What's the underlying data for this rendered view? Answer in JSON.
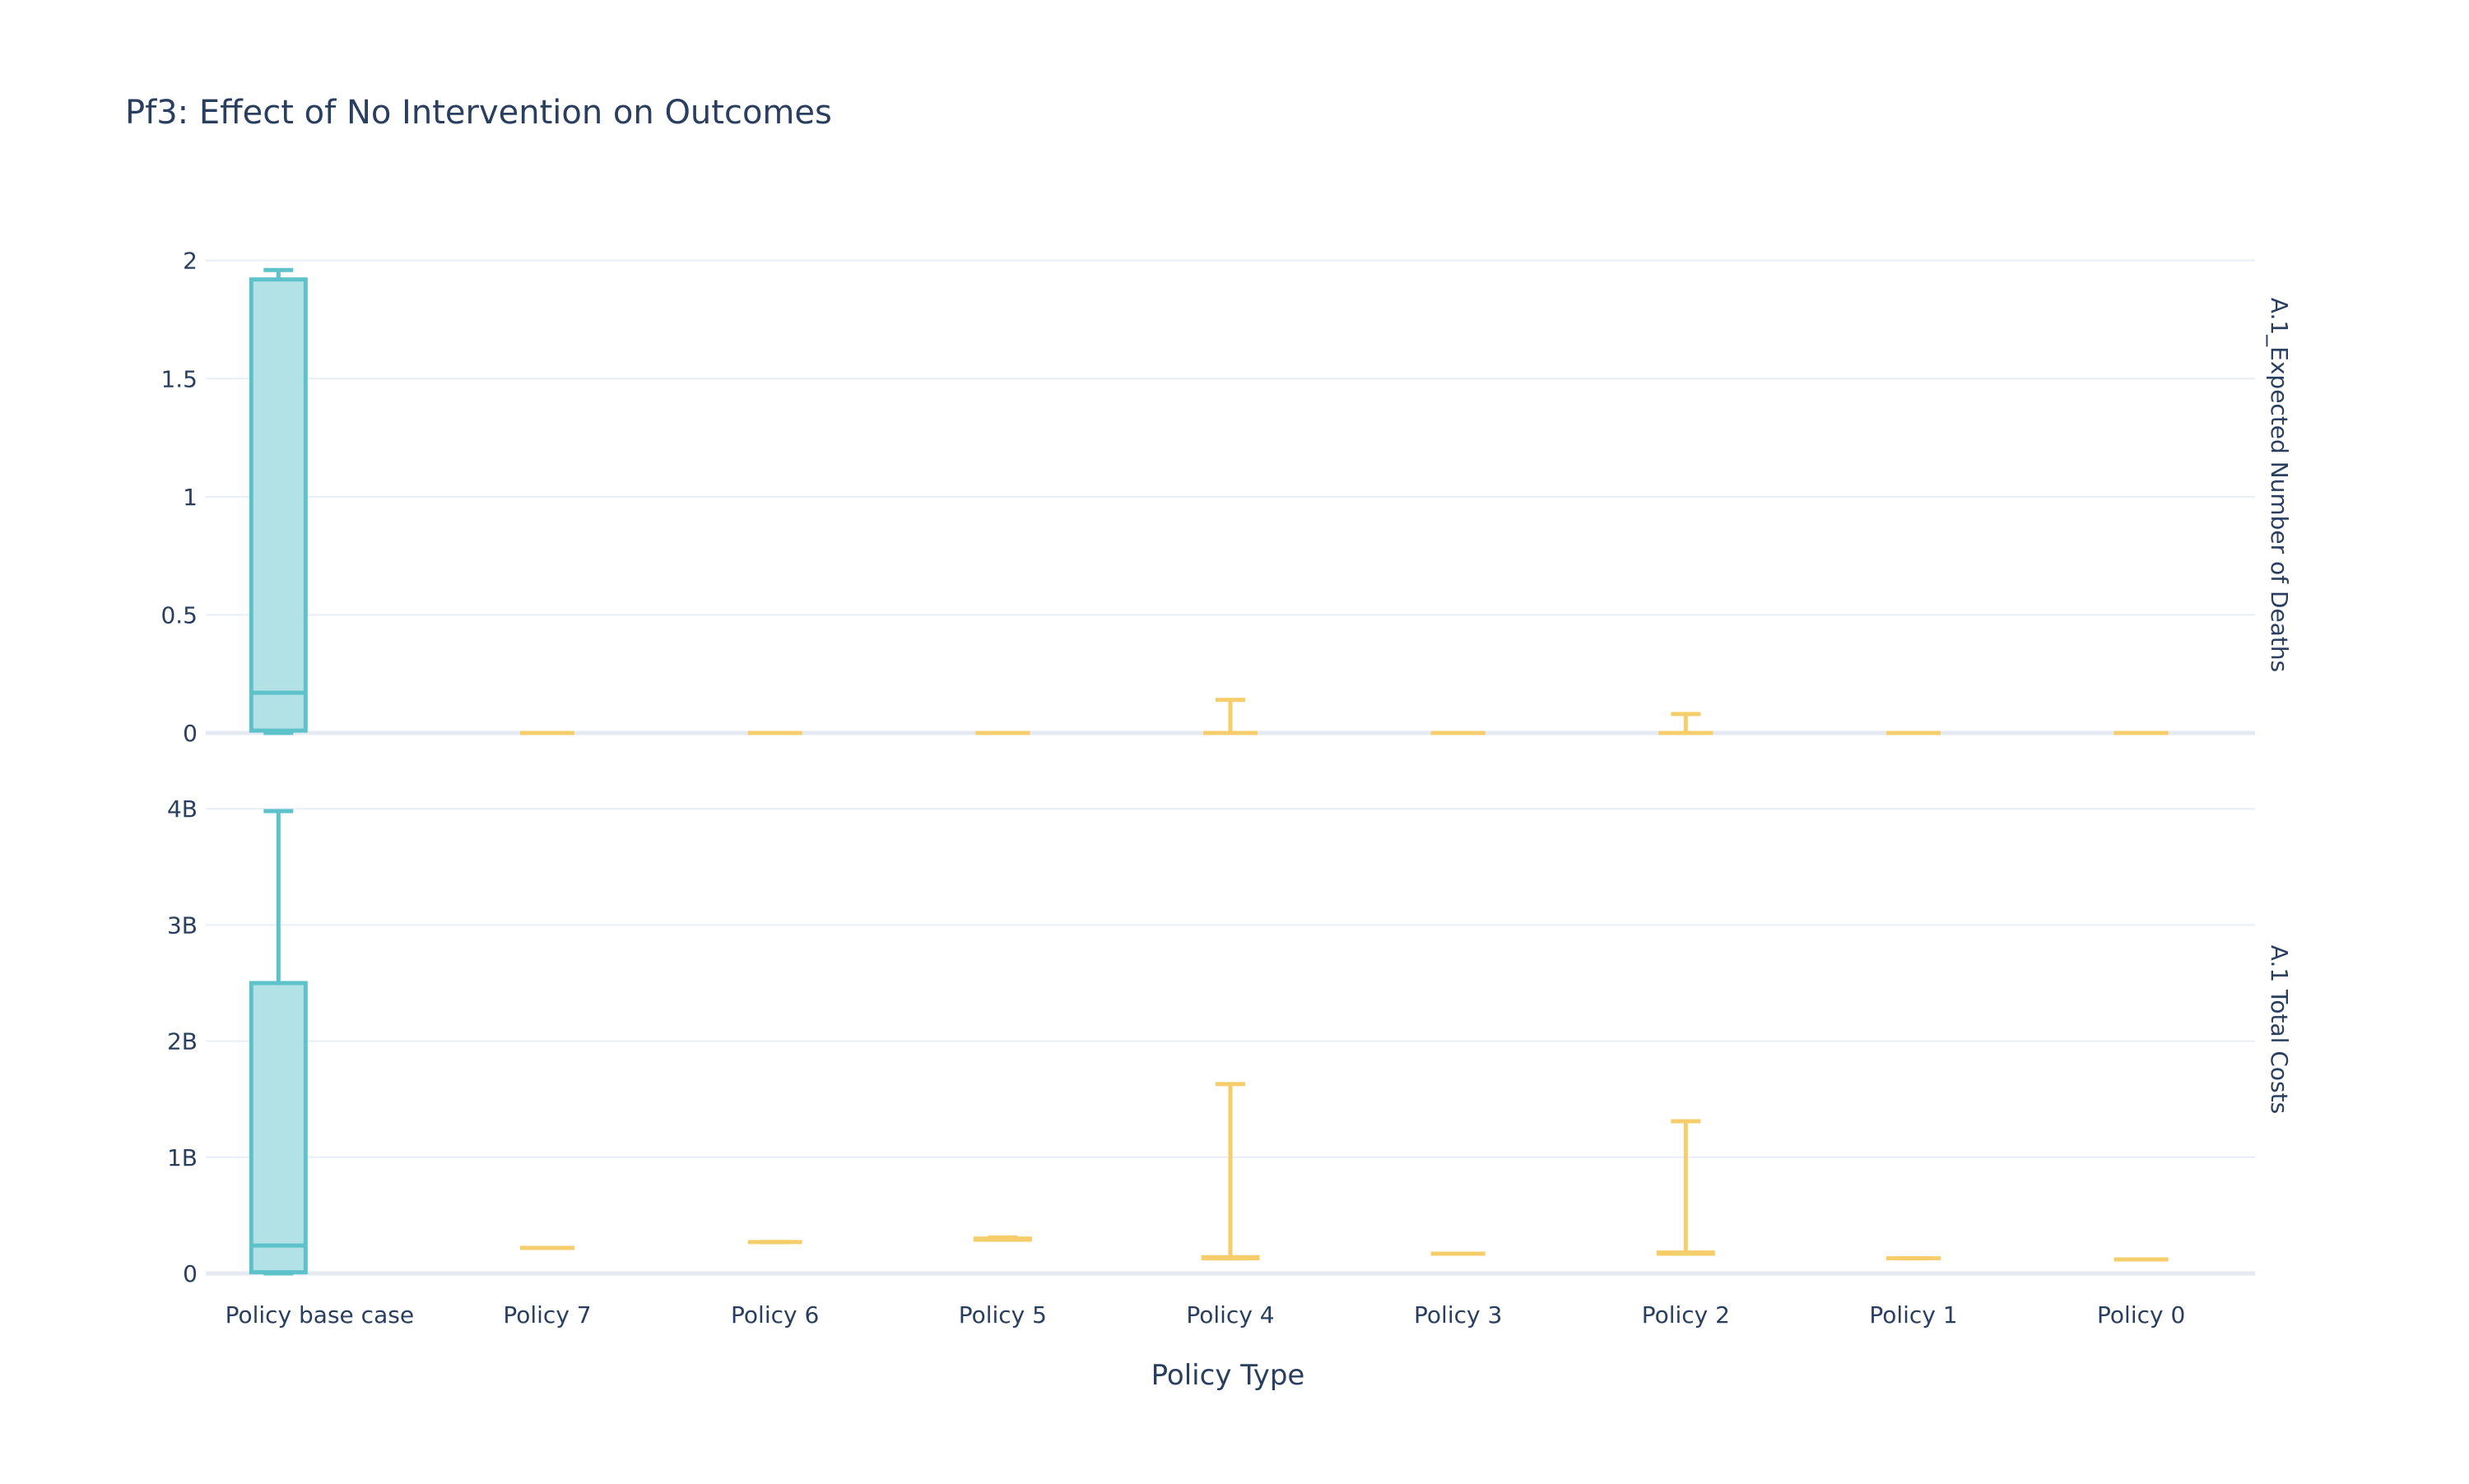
{
  "chart_data": {
    "type": "box",
    "title": "Pf3: Effect of No Intervention on Outcomes",
    "xlabel": "Policy Type",
    "categories": [
      "Policy base case",
      "Policy 7",
      "Policy 6",
      "Policy 5",
      "Policy 4",
      "Policy 3",
      "Policy 2",
      "Policy 1",
      "Policy 0"
    ],
    "colors": {
      "base": "#5ec2ca",
      "base_fill": "#b3e2e6",
      "policy": "#f6cd6b",
      "grid": "#e9edf5",
      "text": "#2a3f5f"
    },
    "facets": [
      {
        "label": "A.1_Expected Number of Deaths",
        "ylim": [
          0,
          2.1
        ],
        "ticks": [
          {
            "value": 0,
            "label": "0"
          },
          {
            "value": 0.5,
            "label": "0.5"
          },
          {
            "value": 1,
            "label": "1"
          },
          {
            "value": 1.5,
            "label": "1.5"
          },
          {
            "value": 2,
            "label": "2"
          }
        ],
        "boxes": [
          {
            "category": "Policy base case",
            "min": 0,
            "q1": 0.01,
            "median": 0.17,
            "q3": 1.92,
            "max": 1.96,
            "group": "base"
          },
          {
            "category": "Policy 7",
            "min": 0,
            "q1": 0,
            "median": 0,
            "q3": 0,
            "max": 0,
            "group": "policy"
          },
          {
            "category": "Policy 6",
            "min": 0,
            "q1": 0,
            "median": 0,
            "q3": 0,
            "max": 0,
            "group": "policy"
          },
          {
            "category": "Policy 5",
            "min": 0,
            "q1": 0,
            "median": 0,
            "q3": 0,
            "max": 0,
            "group": "policy"
          },
          {
            "category": "Policy 4",
            "min": 0,
            "q1": 0,
            "median": 0,
            "q3": 0,
            "max": 0.14,
            "group": "policy"
          },
          {
            "category": "Policy 3",
            "min": 0,
            "q1": 0,
            "median": 0,
            "q3": 0,
            "max": 0,
            "group": "policy"
          },
          {
            "category": "Policy 2",
            "min": 0,
            "q1": 0,
            "median": 0,
            "q3": 0,
            "max": 0.08,
            "group": "policy"
          },
          {
            "category": "Policy 1",
            "min": 0,
            "q1": 0,
            "median": 0,
            "q3": 0,
            "max": 0,
            "group": "policy"
          },
          {
            "category": "Policy 0",
            "min": 0,
            "q1": 0,
            "median": 0,
            "q3": 0,
            "max": 0,
            "group": "policy"
          }
        ]
      },
      {
        "label": "A.1 Total Costs",
        "ylim": [
          0,
          4.2
        ],
        "ticks": [
          {
            "value": 0,
            "label": "0"
          },
          {
            "value": 1,
            "label": "1B"
          },
          {
            "value": 2,
            "label": "2B"
          },
          {
            "value": 3,
            "label": "3B"
          },
          {
            "value": 4,
            "label": "4B"
          }
        ],
        "boxes": [
          {
            "category": "Policy base case",
            "min": 0,
            "q1": 0.01,
            "median": 0.24,
            "q3": 2.5,
            "max": 3.98,
            "group": "base"
          },
          {
            "category": "Policy 7",
            "min": 0.22,
            "q1": 0.22,
            "median": 0.22,
            "q3": 0.22,
            "max": 0.22,
            "group": "policy"
          },
          {
            "category": "Policy 6",
            "min": 0.27,
            "q1": 0.27,
            "median": 0.27,
            "q3": 0.27,
            "max": 0.27,
            "group": "policy"
          },
          {
            "category": "Policy 5",
            "min": 0.29,
            "q1": 0.29,
            "median": 0.29,
            "q3": 0.3,
            "max": 0.31,
            "group": "policy"
          },
          {
            "category": "Policy 4",
            "min": 0.13,
            "q1": 0.13,
            "median": 0.13,
            "q3": 0.14,
            "max": 1.63,
            "group": "policy"
          },
          {
            "category": "Policy 3",
            "min": 0.17,
            "q1": 0.17,
            "median": 0.17,
            "q3": 0.17,
            "max": 0.17,
            "group": "policy"
          },
          {
            "category": "Policy 2",
            "min": 0.17,
            "q1": 0.17,
            "median": 0.17,
            "q3": 0.18,
            "max": 1.31,
            "group": "policy"
          },
          {
            "category": "Policy 1",
            "min": 0.13,
            "q1": 0.13,
            "median": 0.13,
            "q3": 0.13,
            "max": 0.13,
            "group": "policy"
          },
          {
            "category": "Policy 0",
            "min": 0.12,
            "q1": 0.12,
            "median": 0.12,
            "q3": 0.12,
            "max": 0.12,
            "group": "policy"
          }
        ]
      }
    ]
  }
}
